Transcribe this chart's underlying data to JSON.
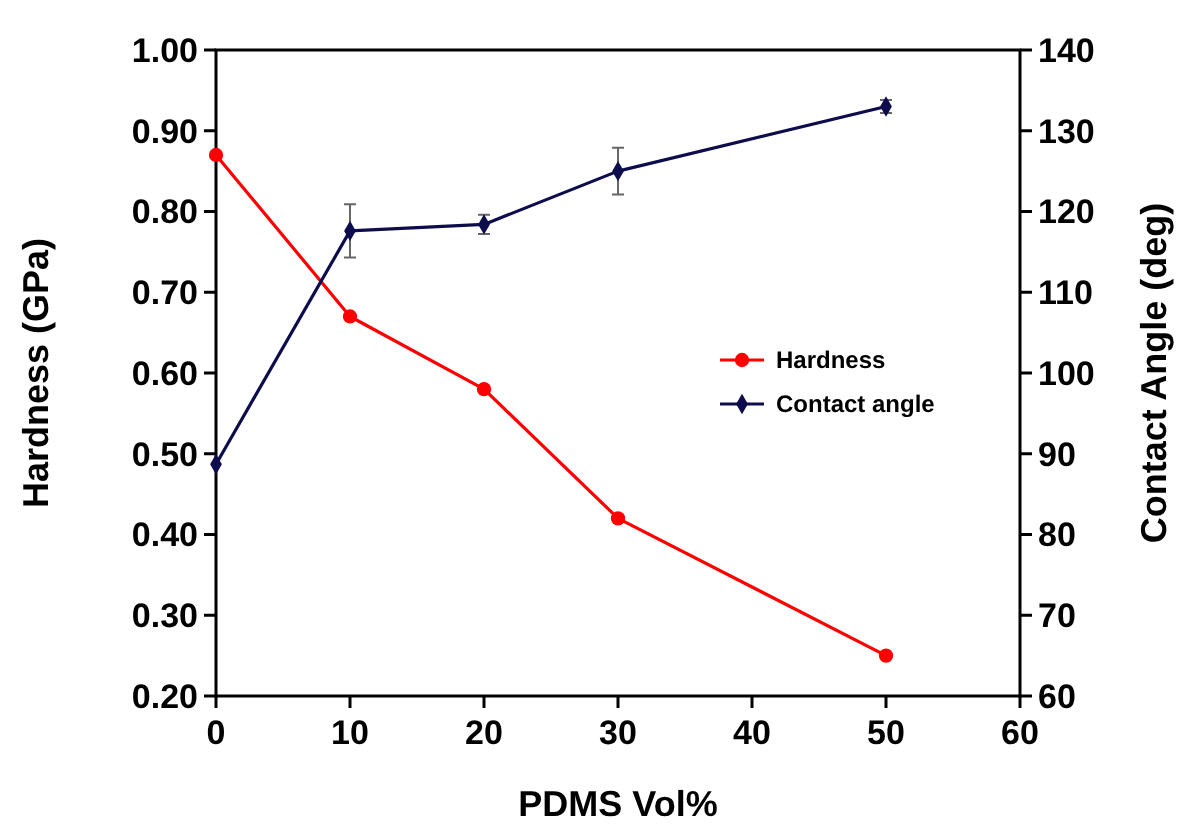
{
  "chart_data": {
    "type": "line",
    "xlabel": "PDMS Vol%",
    "ylabel": "Hardness (GPa)",
    "y2label": "Contact Angle (deg)",
    "x": [
      0,
      10,
      20,
      30,
      50
    ],
    "series": [
      {
        "name": "Hardness",
        "color": "#ff0000",
        "values": [
          0.87,
          0.67,
          0.58,
          0.42,
          0.25
        ],
        "marker": "circle"
      },
      {
        "name": "Contact angle",
        "color": "#0d0d4d",
        "values": [
          88.7,
          117.6,
          118.4,
          125.0,
          133.0
        ],
        "errors": [
          null,
          3.3,
          1.2,
          2.9,
          0.8
        ],
        "axis": "y2",
        "marker": "diamond"
      }
    ],
    "xlim": [
      0,
      60
    ],
    "xticks": [
      0,
      10,
      20,
      30,
      40,
      50,
      60
    ],
    "ylim": [
      0.2,
      1.0
    ],
    "yticks": [
      {
        "value": 0.2,
        "label": "0.20"
      },
      {
        "value": 0.3,
        "label": "0.30"
      },
      {
        "value": 0.4,
        "label": "0.40"
      },
      {
        "value": 0.5,
        "label": "0.50"
      },
      {
        "value": 0.6,
        "label": "0.60"
      },
      {
        "value": 0.7,
        "label": "0.70"
      },
      {
        "value": 0.8,
        "label": "0.80"
      },
      {
        "value": 0.9,
        "label": "0.90"
      },
      {
        "value": 1.0,
        "label": "1.00"
      }
    ],
    "y2lim": [
      60,
      140
    ],
    "y2ticks": [
      60,
      70,
      80,
      90,
      100,
      110,
      120,
      130,
      140
    ],
    "legend": "right",
    "grid": false,
    "line_style": "solid"
  }
}
